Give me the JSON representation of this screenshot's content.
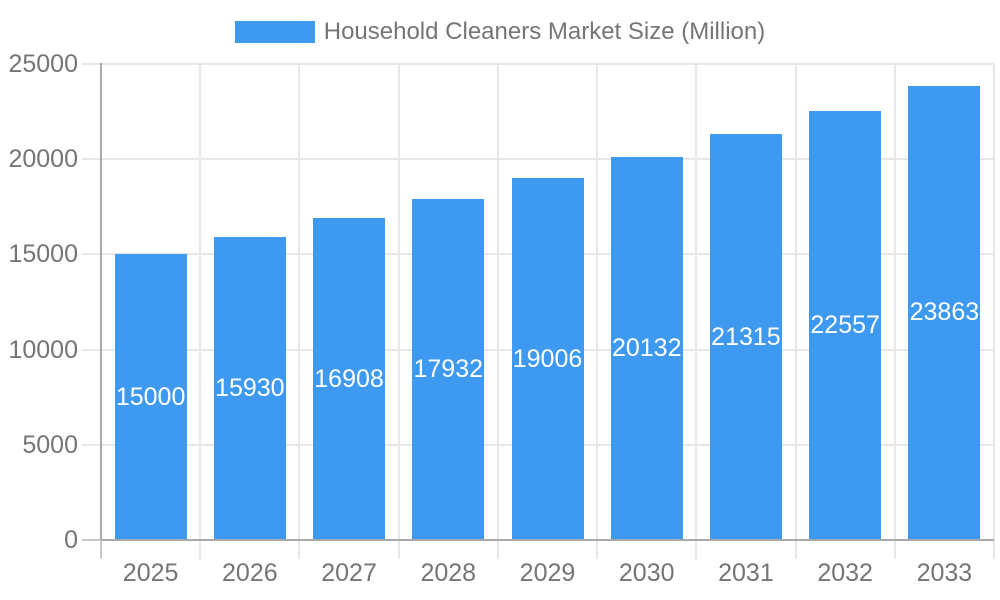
{
  "legend": {
    "label": "Household Cleaners Market Size (Million)",
    "swatch_color": "#3d9af0"
  },
  "chart_data": {
    "type": "bar",
    "title": "Household Cleaners Market Size (Million)",
    "categories": [
      "2025",
      "2026",
      "2027",
      "2028",
      "2029",
      "2030",
      "2031",
      "2032",
      "2033"
    ],
    "series": [
      {
        "name": "Household Cleaners Market Size (Million)",
        "values": [
          15000,
          15930,
          16908,
          17932,
          19006,
          20132,
          21315,
          22557,
          23863
        ]
      }
    ],
    "bar_value_labels": [
      "15000",
      "15930",
      "16908",
      "17932",
      "19006",
      "20132",
      "21315",
      "22557",
      "23863"
    ],
    "xlabel": "",
    "ylabel": "",
    "ylim": [
      0,
      25000
    ],
    "yticks": [
      0,
      5000,
      10000,
      15000,
      20000,
      25000
    ],
    "ytick_labels": [
      "0",
      "5000",
      "10000",
      "15000",
      "20000",
      "25000"
    ],
    "grid": true,
    "legend_position": "top-center",
    "bar_color": "#3d9af0",
    "bar_label_color": "#ffffff",
    "axis_text_color": "#757575",
    "gridline_color": "#e7e7e7",
    "axis_line_color": "#a9a9a9",
    "axis_tick_color": "#c7c7c7",
    "background_color": "#ffffff"
  }
}
